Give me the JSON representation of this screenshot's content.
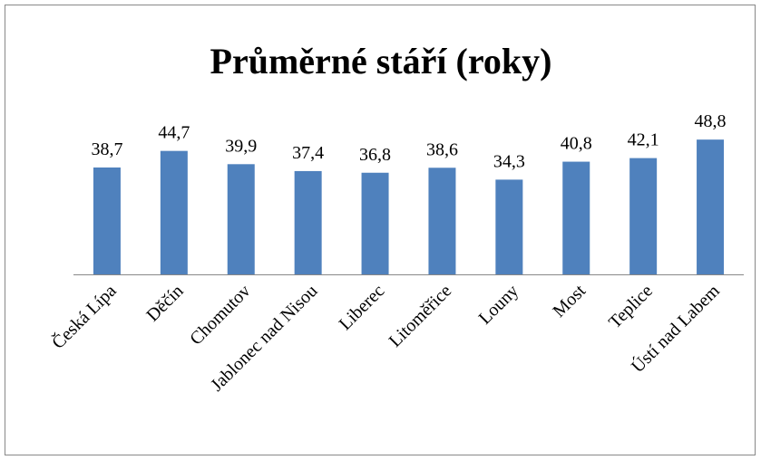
{
  "chart_data": {
    "type": "bar",
    "title": "Průměrné stáří (roky)",
    "categories": [
      "Česká Lípa",
      "Děčín",
      "Chomutov",
      "Jablonec nad Nisou",
      "Liberec",
      "Litoměřice",
      "Louny",
      "Most",
      "Teplice",
      "Ústí nad Labem"
    ],
    "values": [
      38.7,
      44.7,
      39.9,
      37.4,
      36.8,
      38.6,
      34.3,
      40.8,
      42.1,
      48.8
    ],
    "value_labels": [
      "38,7",
      "44,7",
      "39,9",
      "37,4",
      "36,8",
      "38,6",
      "34,3",
      "40,8",
      "42,1",
      "48,8"
    ],
    "color": "#4f81bd",
    "ylim": [
      0,
      60
    ]
  }
}
